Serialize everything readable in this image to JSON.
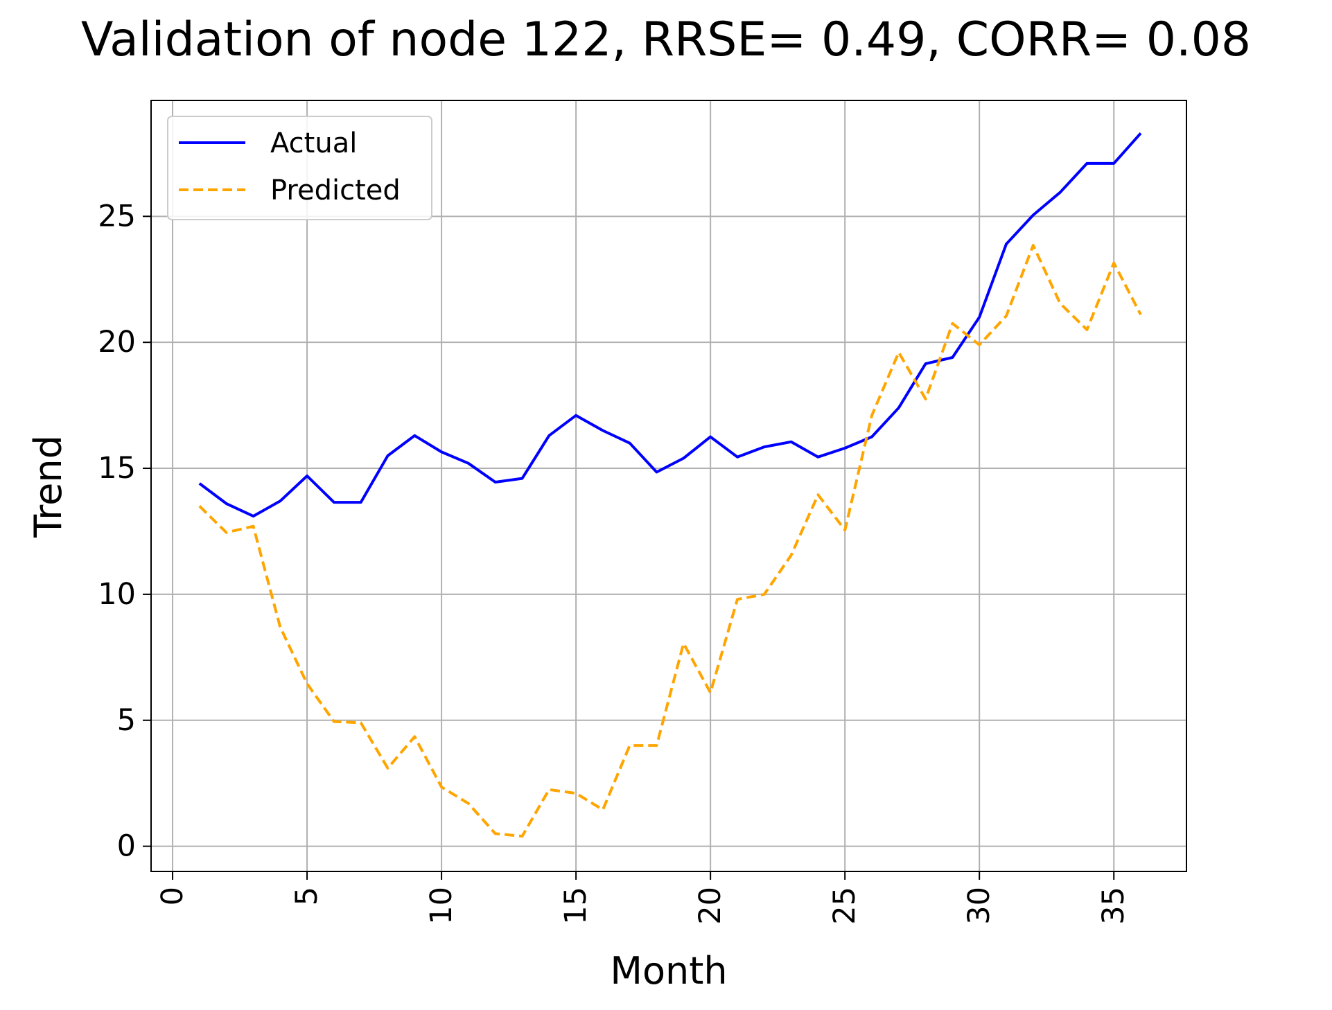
{
  "chart_data": {
    "type": "line",
    "title": "Validation of node 122, RRSE= 0.49, CORR= 0.08",
    "xlabel": "Month",
    "ylabel": "Trend",
    "xlim": [
      -0.8,
      37.7
    ],
    "ylim": [
      -1,
      29.6
    ],
    "xticks": [
      0,
      5,
      10,
      15,
      20,
      25,
      30,
      35
    ],
    "yticks": [
      0,
      5,
      10,
      15,
      20,
      25
    ],
    "grid": true,
    "legend_position": "top-left",
    "x": [
      1,
      2,
      3,
      4,
      5,
      6,
      7,
      8,
      9,
      10,
      11,
      12,
      13,
      14,
      15,
      16,
      17,
      18,
      19,
      20,
      21,
      22,
      23,
      24,
      25,
      26,
      27,
      28,
      29,
      30,
      31,
      32,
      33,
      34,
      35,
      36
    ],
    "series": [
      {
        "name": "Actual",
        "color": "#0000ff",
        "style": "solid",
        "values": [
          14.4,
          13.6,
          13.1,
          13.7,
          14.7,
          13.65,
          13.65,
          15.5,
          16.3,
          15.65,
          15.2,
          14.45,
          14.6,
          16.3,
          17.1,
          16.5,
          16.0,
          14.85,
          15.4,
          16.25,
          15.45,
          15.85,
          16.05,
          15.45,
          15.8,
          16.25,
          17.4,
          19.15,
          19.4,
          21.0,
          23.9,
          25.05,
          25.95,
          27.1,
          27.1,
          28.3
        ]
      },
      {
        "name": "Predicted",
        "color": "#ffa500",
        "style": "dashed",
        "values": [
          13.5,
          12.45,
          12.7,
          8.7,
          6.45,
          4.95,
          4.9,
          3.1,
          4.35,
          2.35,
          1.7,
          0.5,
          0.4,
          2.25,
          2.1,
          1.45,
          4.0,
          4.0,
          8.05,
          6.1,
          9.8,
          10.0,
          11.55,
          13.95,
          12.55,
          17.1,
          19.6,
          17.75,
          20.75,
          19.9,
          21.05,
          23.85,
          21.55,
          20.5,
          23.15,
          21.1
        ]
      }
    ]
  }
}
